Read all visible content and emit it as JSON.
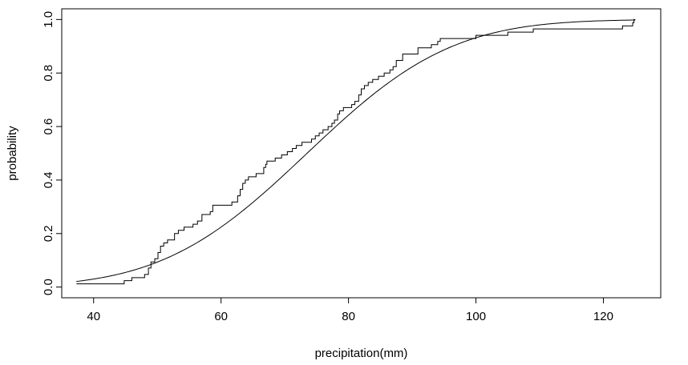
{
  "chart_data": {
    "type": "line",
    "title": "",
    "xlabel": "precipitation(mm)",
    "ylabel": "probability",
    "xlim": [
      35,
      129
    ],
    "ylim": [
      -0.04,
      1.04
    ],
    "x_ticks": [
      40,
      60,
      80,
      100,
      120
    ],
    "x_tick_labels": [
      "40",
      "60",
      "80",
      "100",
      "120"
    ],
    "y_ticks": [
      0.0,
      0.2,
      0.4,
      0.6,
      0.8,
      1.0
    ],
    "y_tick_labels": [
      "0.0",
      "0.2",
      "0.4",
      "0.6",
      "0.8",
      "1.0"
    ],
    "grid": false,
    "line_color": "#000000",
    "series": [
      {
        "kind": "empirical-cdf-step",
        "points": [
          [
            37.3,
            0.012
          ],
          [
            44.8,
            0.012
          ],
          [
            44.8,
            0.024
          ],
          [
            46.0,
            0.024
          ],
          [
            46.0,
            0.035
          ],
          [
            48.0,
            0.035
          ],
          [
            48.0,
            0.047
          ],
          [
            48.6,
            0.047
          ],
          [
            48.6,
            0.071
          ],
          [
            49.0,
            0.071
          ],
          [
            49.0,
            0.094
          ],
          [
            49.6,
            0.094
          ],
          [
            49.6,
            0.106
          ],
          [
            50.1,
            0.106
          ],
          [
            50.1,
            0.129
          ],
          [
            50.5,
            0.129
          ],
          [
            50.5,
            0.153
          ],
          [
            51.0,
            0.153
          ],
          [
            51.0,
            0.165
          ],
          [
            51.6,
            0.165
          ],
          [
            51.6,
            0.176
          ],
          [
            52.7,
            0.176
          ],
          [
            52.7,
            0.2
          ],
          [
            53.3,
            0.2
          ],
          [
            53.3,
            0.212
          ],
          [
            54.2,
            0.212
          ],
          [
            54.2,
            0.224
          ],
          [
            55.6,
            0.224
          ],
          [
            55.6,
            0.235
          ],
          [
            56.3,
            0.235
          ],
          [
            56.3,
            0.247
          ],
          [
            57.0,
            0.247
          ],
          [
            57.0,
            0.271
          ],
          [
            58.3,
            0.271
          ],
          [
            58.3,
            0.282
          ],
          [
            58.7,
            0.282
          ],
          [
            58.7,
            0.306
          ],
          [
            61.7,
            0.306
          ],
          [
            61.7,
            0.318
          ],
          [
            62.6,
            0.318
          ],
          [
            62.6,
            0.341
          ],
          [
            63.0,
            0.341
          ],
          [
            63.0,
            0.365
          ],
          [
            63.4,
            0.365
          ],
          [
            63.4,
            0.388
          ],
          [
            63.8,
            0.388
          ],
          [
            63.8,
            0.4
          ],
          [
            64.3,
            0.4
          ],
          [
            64.3,
            0.412
          ],
          [
            65.5,
            0.412
          ],
          [
            65.5,
            0.424
          ],
          [
            66.7,
            0.424
          ],
          [
            66.7,
            0.447
          ],
          [
            67.0,
            0.447
          ],
          [
            67.0,
            0.459
          ],
          [
            67.2,
            0.459
          ],
          [
            67.2,
            0.471
          ],
          [
            68.5,
            0.471
          ],
          [
            68.5,
            0.482
          ],
          [
            69.5,
            0.482
          ],
          [
            69.5,
            0.494
          ],
          [
            70.4,
            0.494
          ],
          [
            70.4,
            0.506
          ],
          [
            71.2,
            0.506
          ],
          [
            71.2,
            0.518
          ],
          [
            71.8,
            0.518
          ],
          [
            71.8,
            0.529
          ],
          [
            72.7,
            0.529
          ],
          [
            72.7,
            0.541
          ],
          [
            74.2,
            0.541
          ],
          [
            74.2,
            0.553
          ],
          [
            74.8,
            0.553
          ],
          [
            74.8,
            0.565
          ],
          [
            75.4,
            0.565
          ],
          [
            75.4,
            0.576
          ],
          [
            76.0,
            0.576
          ],
          [
            76.0,
            0.588
          ],
          [
            76.8,
            0.588
          ],
          [
            76.8,
            0.6
          ],
          [
            77.4,
            0.6
          ],
          [
            77.4,
            0.612
          ],
          [
            77.8,
            0.612
          ],
          [
            77.8,
            0.624
          ],
          [
            78.3,
            0.624
          ],
          [
            78.3,
            0.647
          ],
          [
            78.6,
            0.647
          ],
          [
            78.6,
            0.659
          ],
          [
            79.2,
            0.659
          ],
          [
            79.2,
            0.671
          ],
          [
            80.5,
            0.671
          ],
          [
            80.5,
            0.682
          ],
          [
            81.0,
            0.682
          ],
          [
            81.0,
            0.694
          ],
          [
            81.6,
            0.694
          ],
          [
            81.6,
            0.718
          ],
          [
            82.0,
            0.718
          ],
          [
            82.0,
            0.741
          ],
          [
            82.5,
            0.741
          ],
          [
            82.5,
            0.753
          ],
          [
            83.1,
            0.753
          ],
          [
            83.1,
            0.765
          ],
          [
            83.8,
            0.765
          ],
          [
            83.8,
            0.776
          ],
          [
            84.7,
            0.776
          ],
          [
            84.7,
            0.788
          ],
          [
            85.6,
            0.788
          ],
          [
            85.6,
            0.8
          ],
          [
            86.5,
            0.8
          ],
          [
            86.5,
            0.812
          ],
          [
            87.0,
            0.812
          ],
          [
            87.0,
            0.824
          ],
          [
            87.5,
            0.824
          ],
          [
            87.5,
            0.847
          ],
          [
            88.5,
            0.847
          ],
          [
            88.5,
            0.871
          ],
          [
            90.9,
            0.871
          ],
          [
            90.9,
            0.894
          ],
          [
            93.0,
            0.894
          ],
          [
            93.0,
            0.906
          ],
          [
            94.0,
            0.906
          ],
          [
            94.0,
            0.918
          ],
          [
            94.4,
            0.918
          ],
          [
            94.4,
            0.929
          ],
          [
            100.0,
            0.929
          ],
          [
            100.0,
            0.941
          ],
          [
            105.0,
            0.941
          ],
          [
            105.0,
            0.953
          ],
          [
            109.0,
            0.953
          ],
          [
            109.0,
            0.965
          ],
          [
            123.0,
            0.965
          ],
          [
            123.0,
            0.976
          ],
          [
            124.6,
            0.976
          ],
          [
            124.6,
            0.988
          ],
          [
            124.8,
            0.988
          ],
          [
            124.8,
            1.0
          ],
          [
            125.0,
            1.0
          ]
        ]
      },
      {
        "kind": "fitted-normal-cdf",
        "mean": 73.5,
        "sd": 17.8,
        "x_start": 37.3,
        "x_end": 125.0
      }
    ]
  }
}
